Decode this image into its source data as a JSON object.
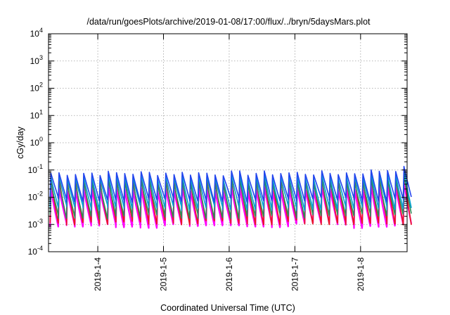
{
  "chart_data": {
    "type": "line",
    "title": "/data/run/goesPlots/archive/2019-01-08/17:00/flux/../bryn/5daysMars.plot",
    "xlabel": "Coordinated Universal Time (UTC)",
    "ylabel": "cGy/day",
    "yscale": "log",
    "ylim": [
      0.0001,
      10000
    ],
    "xlim": [
      "2019-01-03T06:00",
      "2019-01-08T17:00"
    ],
    "y_ticks": [
      {
        "base": "10",
        "exp": "-4",
        "value": 0.0001
      },
      {
        "base": "10",
        "exp": "-3",
        "value": 0.001
      },
      {
        "base": "10",
        "exp": "-2",
        "value": 0.01
      },
      {
        "base": "10",
        "exp": "-1",
        "value": 0.1
      },
      {
        "base": "10",
        "exp": "0",
        "value": 1
      },
      {
        "base": "10",
        "exp": "1",
        "value": 10
      },
      {
        "base": "10",
        "exp": "2",
        "value": 100
      },
      {
        "base": "10",
        "exp": "3",
        "value": 1000
      },
      {
        "base": "10",
        "exp": "4",
        "value": 10000
      }
    ],
    "x_ticks": [
      {
        "label": "2019-1-4",
        "date": "2019-01-04"
      },
      {
        "label": "2019-1-5",
        "date": "2019-01-05"
      },
      {
        "label": "2019-1-6",
        "date": "2019-01-06"
      },
      {
        "label": "2019-1-7",
        "date": "2019-01-07"
      },
      {
        "label": "2019-1-8",
        "date": "2019-01-08"
      }
    ],
    "grid": true,
    "legend": "none",
    "pattern": {
      "description_free": true,
      "period_hours": 3,
      "peak_value": 0.07,
      "trough_value": 0.0015
    },
    "series": [
      {
        "color": "#ff00ff",
        "peak": 0.02,
        "trough": 0.0009
      },
      {
        "color": "#e8191e",
        "peak": 0.045,
        "trough": 0.0012
      },
      {
        "color": "#2e8b57",
        "peak": 0.035,
        "trough": 0.002
      },
      {
        "color": "#00a0d0",
        "peak": 0.055,
        "trough": 0.004
      },
      {
        "color": "#2244ee",
        "peak": 0.075,
        "trough": 0.008
      }
    ]
  }
}
